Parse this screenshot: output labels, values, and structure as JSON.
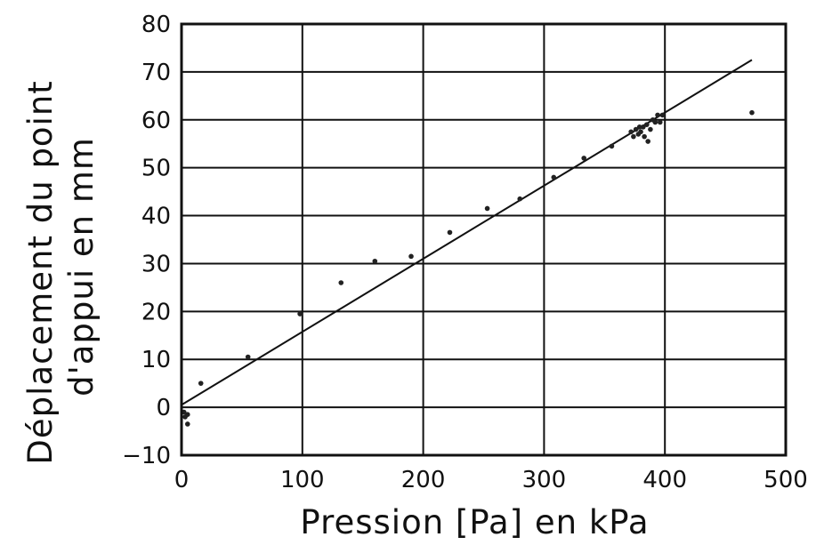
{
  "chart_data": {
    "type": "scatter",
    "xlabel": "Pression [Pa] en kPa",
    "ylabel": "Déplacement du point d'appui en mm",
    "xlim": [
      0,
      500
    ],
    "ylim": [
      -10,
      80
    ],
    "x_ticks": [
      0,
      100,
      200,
      300,
      400,
      500
    ],
    "y_ticks": [
      -10,
      0,
      10,
      20,
      30,
      40,
      50,
      60,
      70,
      80
    ],
    "grid": true,
    "points": [
      {
        "x": 2,
        "y": -1
      },
      {
        "x": 3,
        "y": -2
      },
      {
        "x": 5,
        "y": -1.5
      },
      {
        "x": 5,
        "y": -3.5
      },
      {
        "x": 16,
        "y": 5
      },
      {
        "x": 55,
        "y": 10.5
      },
      {
        "x": 98,
        "y": 19.5
      },
      {
        "x": 132,
        "y": 26
      },
      {
        "x": 160,
        "y": 30.5
      },
      {
        "x": 190,
        "y": 31.5
      },
      {
        "x": 222,
        "y": 36.5
      },
      {
        "x": 253,
        "y": 41.5
      },
      {
        "x": 280,
        "y": 43.5
      },
      {
        "x": 308,
        "y": 48
      },
      {
        "x": 333,
        "y": 52
      },
      {
        "x": 356,
        "y": 54.5
      },
      {
        "x": 372,
        "y": 57.5
      },
      {
        "x": 374,
        "y": 56.5
      },
      {
        "x": 376,
        "y": 58
      },
      {
        "x": 378,
        "y": 57
      },
      {
        "x": 379,
        "y": 58.5
      },
      {
        "x": 380,
        "y": 57.5
      },
      {
        "x": 382,
        "y": 58.5
      },
      {
        "x": 383,
        "y": 56.5
      },
      {
        "x": 385,
        "y": 59
      },
      {
        "x": 386,
        "y": 55.5
      },
      {
        "x": 388,
        "y": 58
      },
      {
        "x": 390,
        "y": 60
      },
      {
        "x": 392,
        "y": 59.5
      },
      {
        "x": 394,
        "y": 61
      },
      {
        "x": 396,
        "y": 59.5
      },
      {
        "x": 398,
        "y": 61
      },
      {
        "x": 472,
        "y": 61.5
      }
    ],
    "fit_line": {
      "x": [
        0,
        472
      ],
      "y": [
        0.5,
        72.5
      ]
    }
  }
}
